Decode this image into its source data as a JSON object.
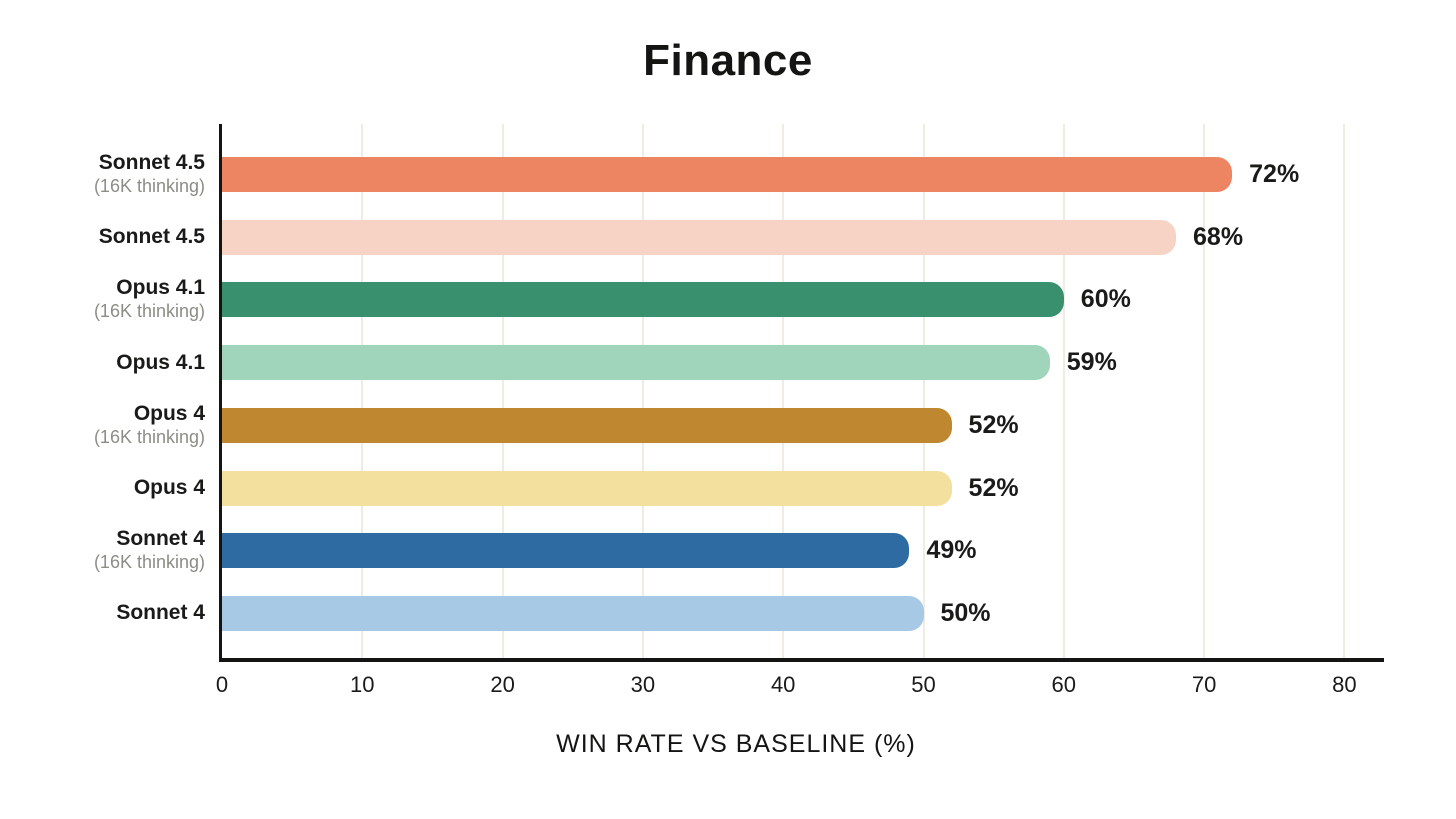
{
  "chart_data": {
    "type": "bar",
    "orientation": "horizontal",
    "title": "Finance",
    "xlabel": "WIN RATE VS BASELINE (%)",
    "xlim": [
      0,
      80
    ],
    "xticks": [
      "0",
      "10",
      "20",
      "30",
      "40",
      "50",
      "60",
      "70",
      "80"
    ],
    "grid": true,
    "legend_position": "none",
    "categories": [
      "Sonnet 4.5 (16K thinking)",
      "Sonnet 4.5",
      "Opus 4.1 (16K thinking)",
      "Opus 4.1",
      "Opus 4 (16K thinking)",
      "Opus 4",
      "Sonnet 4 (16K thinking)",
      "Sonnet 4"
    ],
    "bars": [
      {
        "label": "Sonnet 4.5",
        "sublabel": "(16K thinking)",
        "value": 72,
        "value_label": "72%",
        "color": "#ED8562"
      },
      {
        "label": "Sonnet 4.5",
        "sublabel": "",
        "value": 68,
        "value_label": "68%",
        "color": "#F6D3C4"
      },
      {
        "label": "Opus 4.1",
        "sublabel": "(16K thinking)",
        "value": 60,
        "value_label": "60%",
        "color": "#38906F"
      },
      {
        "label": "Opus 4.1",
        "sublabel": "",
        "value": 59,
        "value_label": "59%",
        "color": "#A0D5BB"
      },
      {
        "label": "Opus 4",
        "sublabel": "(16K thinking)",
        "value": 52,
        "value_label": "52%",
        "color": "#BE8730"
      },
      {
        "label": "Opus 4",
        "sublabel": "",
        "value": 52,
        "value_label": "52%",
        "color": "#F3DF9E"
      },
      {
        "label": "Sonnet 4",
        "sublabel": "(16K thinking)",
        "value": 49,
        "value_label": "49%",
        "color": "#2F6BA3"
      },
      {
        "label": "Sonnet 4",
        "sublabel": "",
        "value": 50,
        "value_label": "50%",
        "color": "#A7C9E6"
      }
    ],
    "colors": {
      "axis": "#141413",
      "gridline": "#EFECE2",
      "category_label": "#1A1A19",
      "category_sublabel": "#8D8D86",
      "value_label": "#1A1A19",
      "background": "#FFFFFF"
    }
  }
}
